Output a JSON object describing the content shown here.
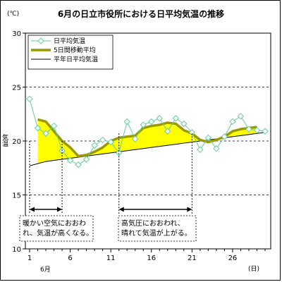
{
  "chart_data": {
    "type": "line",
    "title": "6月の日立市役所における日平均気温の推移",
    "unit_label": "(℃)",
    "ylabel": "気温",
    "xlabel_unit": "(日)",
    "month_label": "6月",
    "ylim": [
      10,
      30
    ],
    "xlim": [
      1,
      30
    ],
    "yticks": [
      10,
      15,
      20,
      25,
      30
    ],
    "xticks": [
      1,
      6,
      11,
      16,
      21,
      26
    ],
    "grid": "dashed horizontal",
    "legend_position": "top-left",
    "x": [
      1,
      2,
      3,
      4,
      5,
      6,
      7,
      8,
      9,
      10,
      11,
      12,
      13,
      14,
      15,
      16,
      17,
      18,
      19,
      20,
      21,
      22,
      23,
      24,
      25,
      26,
      27,
      28,
      29,
      30
    ],
    "series": [
      {
        "name": "日平均気温",
        "style": "line-with-diamond-markers",
        "color": "#66cc99",
        "values": [
          23.9,
          21.2,
          20.7,
          21.4,
          19.1,
          18.2,
          17.8,
          18.3,
          19.6,
          20.1,
          19.9,
          18.9,
          21.8,
          20.2,
          21.5,
          21.8,
          22.1,
          20.9,
          22.1,
          21.6,
          20.8,
          19.2,
          20.3,
          19.3,
          20.4,
          21.8,
          22.3,
          21.1,
          21.0,
          20.9
        ]
      },
      {
        "name": "5日間移動平均",
        "style": "thick-line",
        "color": "#999900",
        "values": [
          null,
          22.0,
          21.8,
          20.9,
          20.0,
          19.4,
          18.6,
          18.7,
          19.0,
          19.4,
          20.0,
          20.3,
          20.4,
          20.5,
          21.2,
          21.4,
          21.5,
          21.7,
          21.6,
          21.0,
          20.7,
          20.1,
          19.9,
          20.1,
          20.4,
          20.9,
          21.1,
          21.2,
          21.3,
          null
        ]
      },
      {
        "name": "平年日平均気温",
        "style": "thin-line",
        "color": "#000000",
        "values": [
          17.7,
          17.9,
          18.1,
          18.2,
          18.3,
          18.4,
          18.5,
          18.6,
          18.7,
          18.8,
          18.9,
          19.0,
          19.1,
          19.2,
          19.3,
          19.4,
          19.5,
          19.6,
          19.7,
          19.8,
          19.9,
          20.0,
          20.1,
          20.2,
          20.3,
          20.4,
          20.5,
          20.6,
          20.7,
          20.8
        ]
      }
    ],
    "fill_color": "#ffff00",
    "annotations": [
      {
        "from_day": 1,
        "to_day": 5,
        "lines": [
          "暖かい空気におおわ",
          "れ、気温が高くなる。"
        ]
      },
      {
        "from_day": 12,
        "to_day": 21,
        "lines": [
          "高気圧におおわれ、",
          "晴れて気温が上がる。"
        ]
      }
    ]
  }
}
